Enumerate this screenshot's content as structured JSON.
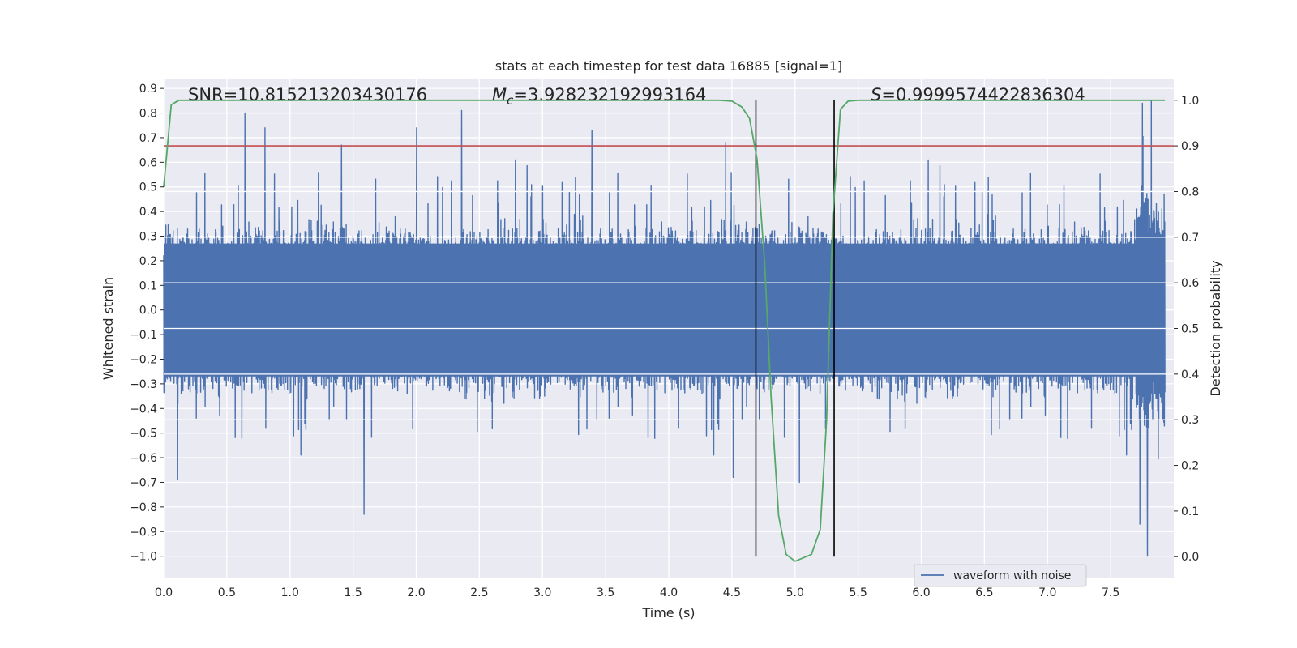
{
  "chart_data": {
    "type": "line",
    "title": "stats at each timestep for test data 16885 [signal=1]",
    "xlabel": "Time (s)",
    "ylabel": "Whitened strain",
    "y2label": "Detection probability",
    "xlim": [
      0.0,
      8.0
    ],
    "ylim": [
      -1.09,
      0.94
    ],
    "y2lim": [
      -0.0475,
      1.0475
    ],
    "x_ticks": [
      "0.0",
      "0.5",
      "1.0",
      "1.5",
      "2.0",
      "2.5",
      "3.0",
      "3.5",
      "4.0",
      "4.5",
      "5.0",
      "5.5",
      "6.0",
      "6.5",
      "7.0",
      "7.5"
    ],
    "y_ticks": [
      "0.9",
      "0.8",
      "0.7",
      "0.6",
      "0.5",
      "0.4",
      "0.3",
      "0.2",
      "0.1",
      "0.0",
      "−0.1",
      "−0.2",
      "−0.3",
      "−0.4",
      "−0.5",
      "−0.6",
      "−0.7",
      "−0.8",
      "−0.9",
      "−1.0"
    ],
    "y2_ticks": [
      "1.0",
      "0.9",
      "0.8",
      "0.7",
      "0.6",
      "0.5",
      "0.4",
      "0.3",
      "0.2",
      "0.1",
      "0.0"
    ],
    "annotations": {
      "snr": "SNR=10.815213203430176",
      "mc_symbol": "M",
      "mc_sub": "c",
      "mc_value": "=3.928232192993164",
      "s_symbol": "S",
      "s_value": "=0.9999574422836304"
    },
    "threshold": {
      "value": 0.9,
      "axis": "detection probability",
      "color": "#c44e52"
    },
    "vlines": [
      4.69,
      5.31
    ],
    "series": [
      {
        "name": "waveform with noise",
        "color": "#4c72b0",
        "axis": "left",
        "envelope_typical": [
          -0.3,
          0.3
        ],
        "notable_peaks": [
          {
            "x": 0.65,
            "y": 0.8
          },
          {
            "x": 0.81,
            "y": 0.74
          },
          {
            "x": 1.42,
            "y": 0.67
          },
          {
            "x": 2.02,
            "y": 0.74
          },
          {
            "x": 2.38,
            "y": 0.81
          },
          {
            "x": 3.42,
            "y": 0.73
          },
          {
            "x": 4.49,
            "y": 0.68
          },
          {
            "x": 7.82,
            "y": 0.84
          },
          {
            "x": 7.89,
            "y": 0.85
          },
          {
            "x": 0.11,
            "y": -0.69
          },
          {
            "x": 1.6,
            "y": -0.83
          },
          {
            "x": 4.55,
            "y": -0.68
          },
          {
            "x": 5.08,
            "y": -0.7
          },
          {
            "x": 7.8,
            "y": -0.87
          },
          {
            "x": 7.86,
            "y": -1.0
          }
        ]
      },
      {
        "name": "detection probability",
        "color": "#55a868",
        "axis": "right",
        "x": [
          0.0,
          0.06,
          0.12,
          0.2,
          0.5,
          1.0,
          2.0,
          3.0,
          4.0,
          4.4,
          4.5,
          4.58,
          4.64,
          4.7,
          4.76,
          4.81,
          4.87,
          4.93,
          5.0,
          5.13,
          5.2,
          5.25,
          5.3,
          5.36,
          5.42,
          5.5,
          5.6,
          6.0,
          7.0,
          7.93
        ],
        "y": [
          0.81,
          0.99,
          1.0,
          1.0,
          1.0,
          1.0,
          1.0,
          1.0,
          1.0,
          1.0,
          0.998,
          0.985,
          0.96,
          0.87,
          0.64,
          0.35,
          0.09,
          0.005,
          -0.01,
          0.005,
          0.06,
          0.3,
          0.75,
          0.98,
          0.998,
          1.0,
          1.0,
          1.0,
          1.0,
          1.0
        ]
      }
    ],
    "legend": {
      "label": "waveform with noise",
      "placement": "lower-right"
    }
  }
}
